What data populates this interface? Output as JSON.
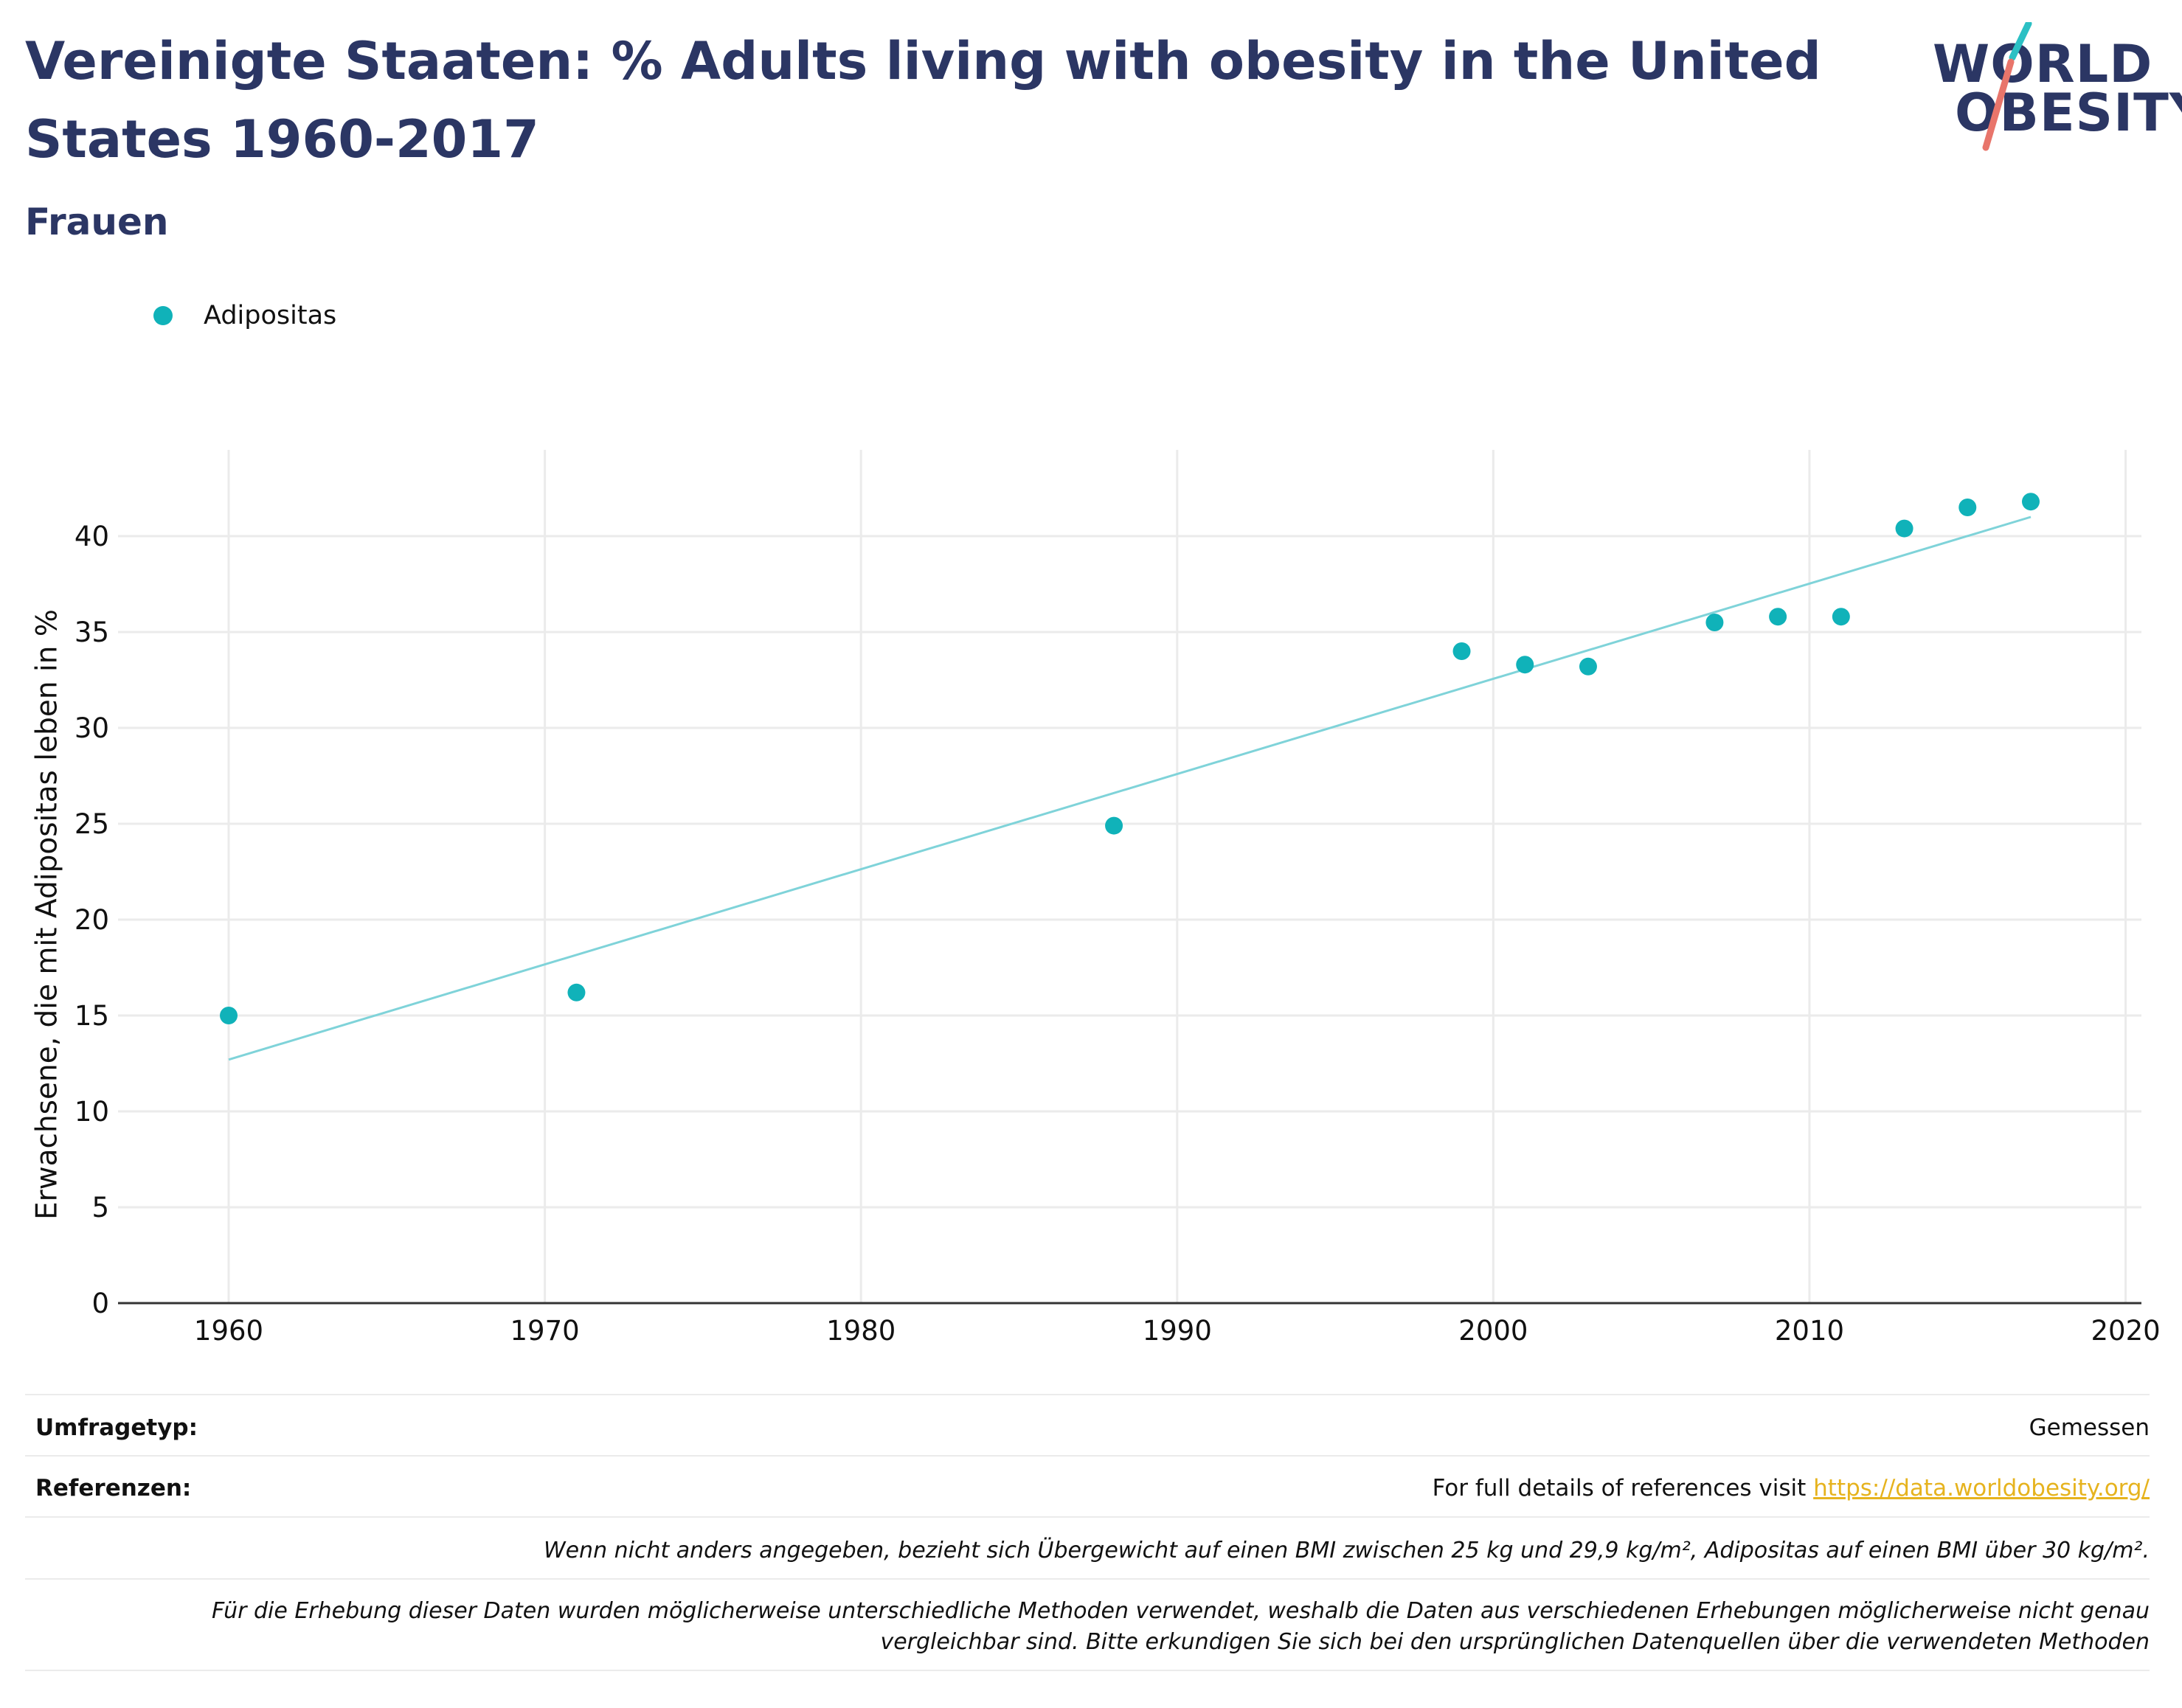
{
  "header": {
    "title": "Vereinigte Staaten: % Adults living with obesity in the United States 1960-2017",
    "subtitle": "Frauen"
  },
  "logo": {
    "line1": "WORLD",
    "line2": "OBESITY"
  },
  "colors": {
    "title": "#2b3664",
    "points": "#10b2b9",
    "trend": "#7fd3d9",
    "logo_teal": "#2cc0c4",
    "logo_coral": "#e8756b",
    "link": "#e6b31e"
  },
  "chart_data": {
    "type": "scatter",
    "ylabel": "Erwachsene, die mit Adipositas leben in %",
    "xlim": [
      1956.5,
      2020.5
    ],
    "ylim": [
      0,
      44.5
    ],
    "x_ticks": [
      1960,
      1970,
      1980,
      1990,
      2000,
      2010,
      2020
    ],
    "y_ticks": [
      0,
      5,
      10,
      15,
      20,
      25,
      30,
      35,
      40
    ],
    "grid": true,
    "legend_position": "top-left",
    "series": [
      {
        "name": "Adipositas",
        "points": [
          {
            "x": 1960,
            "y": 15.0
          },
          {
            "x": 1971,
            "y": 16.2
          },
          {
            "x": 1988,
            "y": 24.9
          },
          {
            "x": 1999,
            "y": 34.0
          },
          {
            "x": 2001,
            "y": 33.3
          },
          {
            "x": 2003,
            "y": 33.2
          },
          {
            "x": 2007,
            "y": 35.5
          },
          {
            "x": 2009,
            "y": 35.8
          },
          {
            "x": 2011,
            "y": 35.8
          },
          {
            "x": 2013,
            "y": 40.4
          },
          {
            "x": 2015,
            "y": 41.5
          },
          {
            "x": 2017,
            "y": 41.8
          }
        ]
      }
    ],
    "trendline": {
      "x": [
        1960,
        2017
      ],
      "y": [
        12.7,
        41.0
      ]
    }
  },
  "footer": {
    "survey_key": "Umfragetyp:",
    "survey_val": "Gemessen",
    "refs_key": "Referenzen:",
    "refs_text": "For full details of references visit ",
    "refs_link": "https://data.worldobesity.org/",
    "note1": "Wenn nicht anders angegeben, bezieht sich Übergewicht auf einen BMI zwischen 25 kg und 29,9 kg/m², Adipositas auf einen BMI über 30 kg/m².",
    "note2": "Für die Erhebung dieser Daten wurden möglicherweise unterschiedliche Methoden verwendet, weshalb die Daten aus verschiedenen Erhebungen möglicherweise nicht genau vergleichbar sind. Bitte erkundigen Sie sich bei den ursprünglichen Datenquellen über die verwendeten Methoden"
  }
}
